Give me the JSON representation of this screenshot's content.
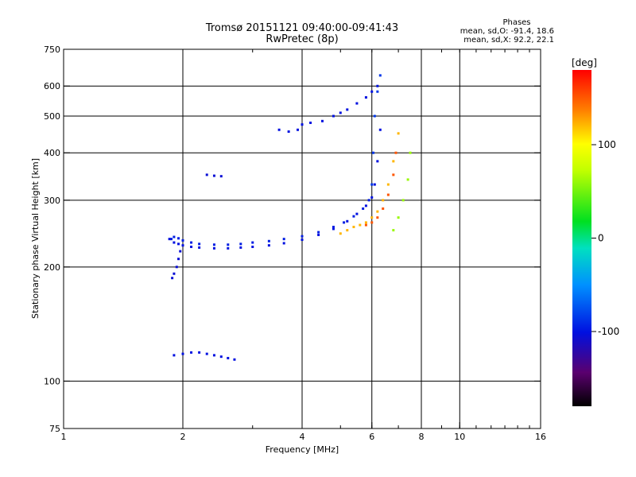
{
  "chart_data": {
    "type": "scatter",
    "title": "Tromsø 20151121 09:40:00-09:41:43",
    "subtitle": "RwPretec (8p)",
    "xlabel": "Frequency [MHz]",
    "ylabel": "Stationary phase Virtual Height [km]",
    "x_scale": "log",
    "y_scale": "log",
    "xlim": [
      1,
      16
    ],
    "ylim": [
      75,
      750
    ],
    "x_ticks": [
      1,
      2,
      4,
      6,
      8,
      10,
      16
    ],
    "x_tick_labels": [
      "1",
      "2",
      "4",
      "6",
      "8",
      "10",
      "16"
    ],
    "x_gridlines": [
      2,
      4,
      6,
      8,
      10
    ],
    "y_ticks": [
      75,
      100,
      200,
      300,
      400,
      500,
      600,
      750
    ],
    "y_tick_labels": [
      "75",
      "100",
      "200",
      "300",
      "400",
      "500",
      "600",
      "750"
    ],
    "y_gridlines": [
      100,
      200,
      300,
      400,
      500,
      600
    ],
    "phases_box": {
      "heading": "Phases",
      "line_o": "mean, sd,O: -91.4, 18.6",
      "line_x": "mean, sd,X:  92.2, 22.1"
    },
    "colorbar": {
      "label": "[deg]",
      "range": [
        -180,
        180
      ],
      "ticks": [
        100,
        0,
        -100
      ],
      "tick_labels": [
        "100",
        "0",
        "-100"
      ],
      "colormap": "rainbow (black-purple-blue-cyan-green-yellow-orange-red)"
    },
    "traces": [
      {
        "x": [
          1.85,
          1.9,
          1.95,
          2.0,
          2.1,
          2.2,
          2.4,
          2.6,
          2.8,
          3.0,
          3.3,
          3.6,
          4.0,
          4.4,
          4.8,
          5.2,
          5.5,
          5.8,
          6.0,
          6.1,
          6.2,
          6.3
        ],
        "y": [
          237,
          232,
          230,
          228,
          226,
          225,
          224,
          224,
          225,
          226,
          228,
          231,
          236,
          243,
          252,
          264,
          276,
          290,
          305,
          330,
          380,
          460
        ],
        "phase": -100
      },
      {
        "x": [
          1.87,
          1.9,
          1.95,
          2.0,
          2.1,
          2.2,
          2.4,
          2.6,
          2.8,
          3.0,
          3.3,
          3.6,
          4.0,
          4.4,
          4.8,
          5.1,
          5.4,
          5.7,
          5.9
        ],
        "y": [
          237,
          240,
          238,
          235,
          232,
          230,
          229,
          229,
          230,
          232,
          234,
          237,
          241,
          247,
          255,
          262,
          272,
          285,
          300
        ],
        "phase": -95
      },
      {
        "x": [
          1.88,
          1.9,
          1.93,
          1.95,
          1.97
        ],
        "y": [
          187,
          192,
          200,
          210,
          220
        ],
        "phase": -105
      },
      {
        "x": [
          6.0,
          6.05,
          6.1,
          6.2,
          6.3
        ],
        "y": [
          330,
          400,
          500,
          580,
          640
        ],
        "phase": -85
      },
      {
        "x": [
          3.5,
          3.7,
          3.9,
          4.0,
          4.2,
          4.5,
          4.8,
          5.0,
          5.2,
          5.5,
          5.8,
          6.0,
          6.2
        ],
        "y": [
          460,
          455,
          460,
          475,
          480,
          485,
          500,
          510,
          520,
          540,
          560,
          580,
          600
        ],
        "phase": -100
      },
      {
        "x": [
          2.3,
          2.4,
          2.5
        ],
        "y": [
          350,
          348,
          347
        ],
        "phase": -105
      },
      {
        "x": [
          1.9,
          2.0,
          2.1,
          2.2,
          2.3,
          2.4,
          2.5,
          2.6,
          2.7
        ],
        "y": [
          117,
          118,
          119,
          119,
          118,
          117,
          116,
          115,
          114
        ],
        "phase": -100
      },
      {
        "x": [
          5.0,
          5.2,
          5.4,
          5.6,
          5.8,
          6.0,
          6.2,
          6.4,
          6.6,
          6.8,
          7.0
        ],
        "y": [
          245,
          250,
          255,
          258,
          262,
          270,
          280,
          300,
          330,
          380,
          450
        ],
        "phase": 120
      },
      {
        "x": [
          5.8,
          6.0,
          6.2,
          6.4,
          6.6,
          6.8,
          6.9
        ],
        "y": [
          258,
          262,
          270,
          285,
          310,
          350,
          400
        ],
        "phase": 150
      },
      {
        "x": [
          6.8,
          7.0,
          7.2,
          7.4,
          7.5
        ],
        "y": [
          250,
          270,
          300,
          340,
          400
        ],
        "phase": 60
      }
    ]
  }
}
